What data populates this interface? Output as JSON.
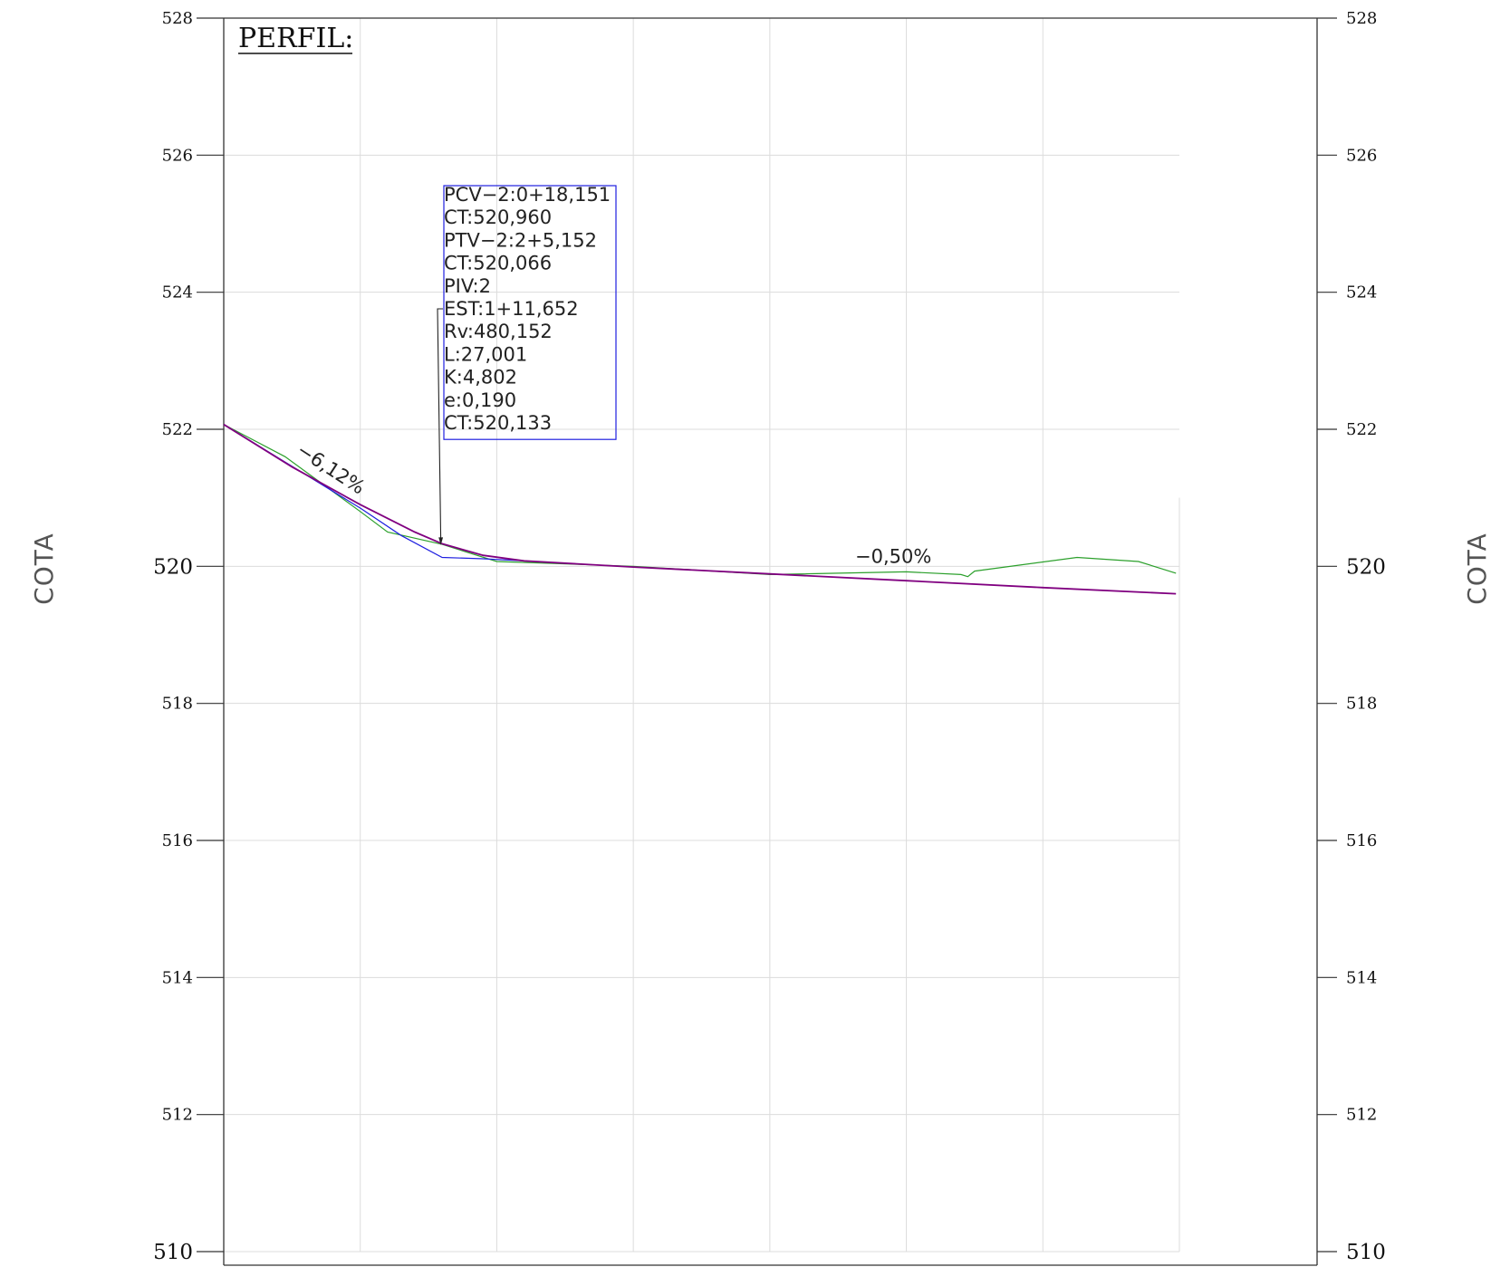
{
  "chart_data": {
    "type": "line",
    "title": "PERFIL:",
    "ylabel_left": "COTA",
    "ylabel_right": "COTA",
    "xlabel": "",
    "ylim": [
      510,
      528
    ],
    "yticks": [
      510,
      512,
      514,
      516,
      518,
      520,
      522,
      524,
      526,
      528
    ],
    "xlim": [
      0,
      140
    ],
    "grid": true,
    "series": [
      {
        "color": "#2ca02c",
        "x": [
          0,
          9,
          20,
          24,
          32,
          40,
          60,
          80,
          100,
          108,
          109,
          110,
          125,
          134,
          139.5
        ],
        "y": [
          522.07,
          521.6,
          520.8,
          520.5,
          520.32,
          520.07,
          520.0,
          519.88,
          519.92,
          519.88,
          519.85,
          519.93,
          520.13,
          520.07,
          519.9
        ]
      },
      {
        "color": "#1f1fe0",
        "x": [
          0,
          20,
          26,
          32,
          38,
          44
        ],
        "y": [
          522.07,
          520.85,
          520.45,
          520.13,
          520.11,
          520.08
        ]
      },
      {
        "color": "#800080",
        "x": [
          0,
          10,
          20,
          28,
          32,
          38,
          44,
          60,
          80,
          100,
          120,
          139.5
        ],
        "y": [
          522.07,
          521.45,
          520.9,
          520.5,
          520.33,
          520.16,
          520.08,
          519.99,
          519.89,
          519.79,
          519.69,
          519.6
        ]
      }
    ],
    "annotations": {
      "box_lines": [
        "PCV−2:0+18,151",
        "CT:520,960",
        "PTV−2:2+5,152",
        "CT:520,066",
        "PIV:2",
        "EST:1+11,652",
        "Rv:480,152",
        "L:27,001",
        "K:4,802",
        "e:0,190",
        "CT:520,133"
      ],
      "box_color": "#1f1fe0",
      "pointer_x": 31.8,
      "pointer_y": 520.33,
      "slopes": [
        {
          "label": "−6,12%",
          "x": 10.5,
          "y": 521.65,
          "angle": 33
        },
        {
          "label": "−0,50%",
          "x": 92.5,
          "y": 520.05,
          "angle": 0
        }
      ]
    }
  }
}
